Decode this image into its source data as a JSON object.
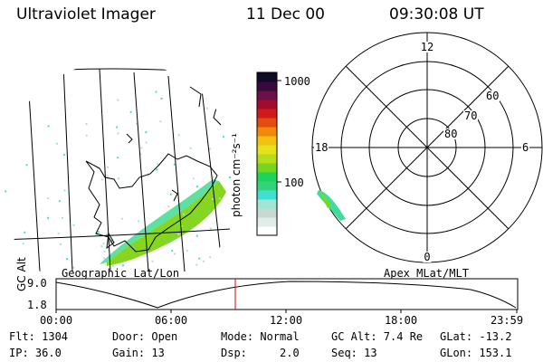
{
  "header": {
    "instrument": "Ultraviolet Imager",
    "date": "11 Dec 00",
    "time": "09:30:08 UT"
  },
  "panels": {
    "geo_label": "Geographic Lat/Lon",
    "apex_label": "Apex MLat/MLT"
  },
  "colorbar": {
    "unit": "photon cm⁻²s⁻¹",
    "ticks": [
      "1000",
      "100"
    ],
    "colors": [
      "#ffffff",
      "#e2ece8",
      "#c7d9d3",
      "#9ee6d8",
      "#3ee0d3",
      "#33d47a",
      "#1ed35c",
      "#75d41d",
      "#b7dc1c",
      "#e5e11a",
      "#f0c311",
      "#f08a08",
      "#e44c10",
      "#cf1a1a",
      "#a30b2d",
      "#6b1048",
      "#360a3a",
      "#100b24"
    ],
    "scale": "log"
  },
  "polar": {
    "mlt_labels": [
      "12",
      "18",
      "6",
      "0"
    ],
    "mlat_labels": [
      "60",
      "70",
      "80"
    ]
  },
  "altitude_plot": {
    "ylabel": "GC Alt",
    "yticks": [
      "9.0",
      "1.8"
    ],
    "xticks": [
      "00:00",
      "06:00",
      "12:00",
      "18:00",
      "23:59"
    ],
    "marker_color": "#dd0000"
  },
  "footer": {
    "flt": "Flt: 1304",
    "ip": "IP: 36.0",
    "door": "Door: Open",
    "gain": "Gain: 13",
    "mode": "Mode: Normal",
    "dsp": "Dsp:     2.0",
    "gcalt": "GC Alt: 7.4 Re",
    "seq": "Seq: 13",
    "glat": "GLat: -13.2",
    "glon": "GLon: 153.1"
  }
}
